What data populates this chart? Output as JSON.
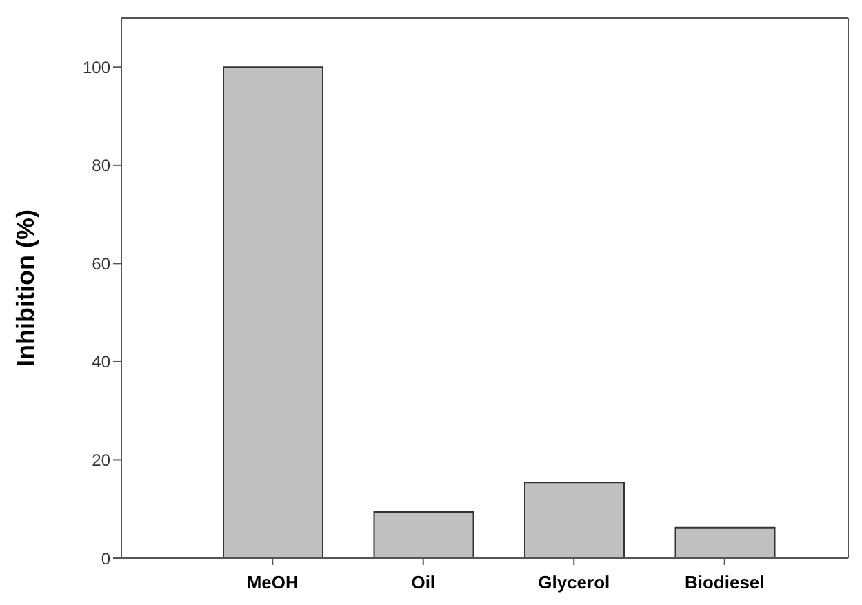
{
  "chart_data": {
    "type": "bar",
    "ylabel": "Inhibition (%)",
    "categories": [
      "MeOH",
      "Oil",
      "Glycerol",
      "Biodiesel"
    ],
    "values": [
      100,
      9.4,
      15.4,
      6.2
    ],
    "color": "#c0c0c0",
    "ylim": [
      0,
      110
    ],
    "yticks": [
      0,
      20,
      40,
      60,
      80,
      100
    ],
    "grid": false,
    "legend": false
  }
}
